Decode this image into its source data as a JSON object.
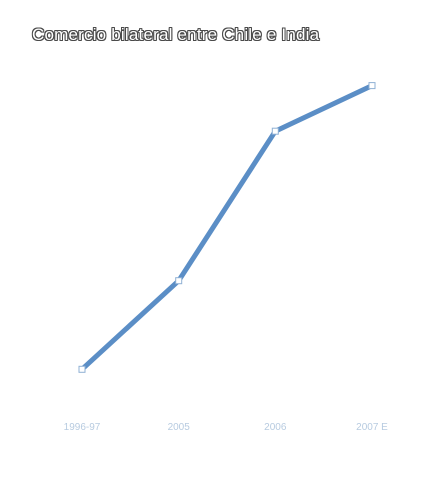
{
  "chart_data": {
    "type": "line",
    "title": "Comercio bilateral entre Chile e India",
    "categories": [
      "1996-97",
      "2005",
      "2006",
      "2007 E"
    ],
    "series": [
      {
        "values": [
          400,
          1100,
          2280,
          2640
        ]
      }
    ],
    "xlabel": "",
    "ylabel": "",
    "ylim": [
      0,
      3000
    ],
    "grid": false,
    "legend": "none",
    "colors": {
      "line": "#5b8ec6",
      "point_stroke": "#8fb0d4",
      "tick_label": "#b7cbe0"
    }
  }
}
